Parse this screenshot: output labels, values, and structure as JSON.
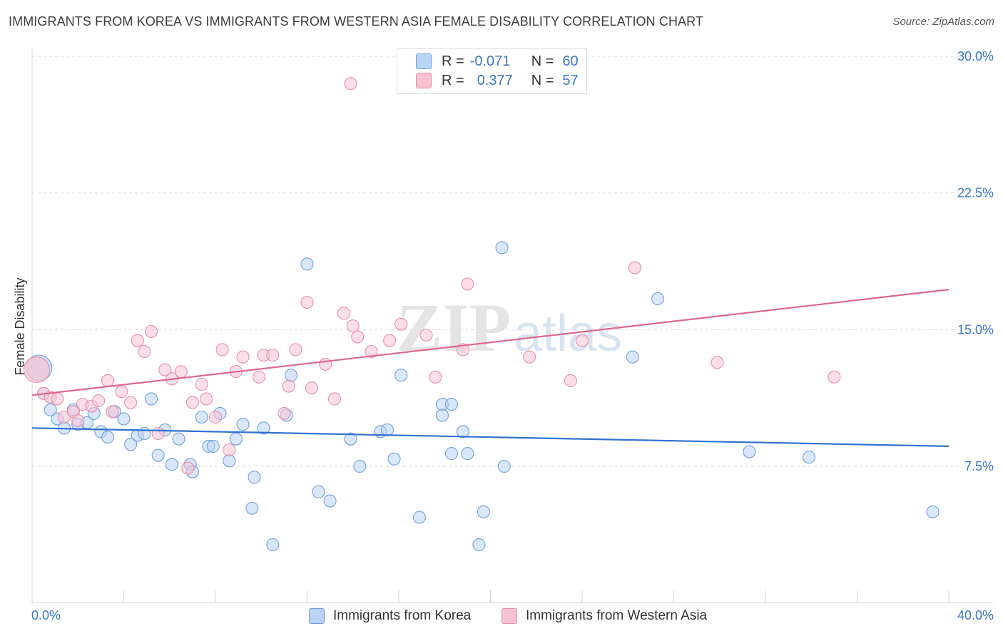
{
  "header": {
    "title": "IMMIGRANTS FROM KOREA VS IMMIGRANTS FROM WESTERN ASIA FEMALE DISABILITY CORRELATION CHART",
    "source": "Source: ZipAtlas.com"
  },
  "watermark": {
    "part1": "ZIP",
    "part2": "atlas"
  },
  "legend": {
    "r_label": "R =",
    "n_label": "N =",
    "korea": {
      "r": "-0.071",
      "n": "60"
    },
    "wasia": {
      "r": "0.377",
      "n": "57"
    }
  },
  "colors": {
    "korea_fill": "#b9d3f5",
    "korea_stroke": "#6e9fe0",
    "korea_line": "#2f72cf",
    "wasia_fill": "#f7c3d3",
    "wasia_stroke": "#e98eaa",
    "wasia_line": "#e0678f",
    "tick_label": "#3b78c9"
  },
  "chart_data": {
    "type": "scatter",
    "title": "IMMIGRANTS FROM KOREA VS IMMIGRANTS FROM WESTERN ASIA FEMALE DISABILITY CORRELATION CHART",
    "xlabel": "",
    "ylabel": "Female Disability",
    "xlim": [
      0,
      40
    ],
    "ylim": [
      0,
      31
    ],
    "x_tick_labels": [
      "0.0%",
      "40.0%"
    ],
    "y_ticks": [
      7.5,
      15.0,
      22.5,
      30.0
    ],
    "y_tick_labels": [
      "7.5%",
      "15.0%",
      "22.5%",
      "30.0%"
    ],
    "grid": true,
    "series": [
      {
        "name": "Immigrants from Korea",
        "color": "#6e9fe0",
        "trend": {
          "x": [
            0,
            40
          ],
          "y": [
            9.6,
            8.6
          ]
        },
        "points": [
          {
            "x": 0.3,
            "y": 12.9,
            "big": true
          },
          {
            "x": 0.5,
            "y": 11.5
          },
          {
            "x": 0.8,
            "y": 10.6
          },
          {
            "x": 1.1,
            "y": 10.1
          },
          {
            "x": 1.4,
            "y": 9.6
          },
          {
            "x": 1.8,
            "y": 10.6
          },
          {
            "x": 2.0,
            "y": 9.8
          },
          {
            "x": 2.4,
            "y": 9.9
          },
          {
            "x": 2.7,
            "y": 10.4
          },
          {
            "x": 3.0,
            "y": 9.4
          },
          {
            "x": 3.3,
            "y": 9.1
          },
          {
            "x": 3.6,
            "y": 10.5
          },
          {
            "x": 4.0,
            "y": 10.1
          },
          {
            "x": 4.3,
            "y": 8.7
          },
          {
            "x": 4.6,
            "y": 9.2
          },
          {
            "x": 4.9,
            "y": 9.3
          },
          {
            "x": 5.2,
            "y": 11.2
          },
          {
            "x": 5.5,
            "y": 8.1
          },
          {
            "x": 5.8,
            "y": 9.5
          },
          {
            "x": 6.1,
            "y": 7.6
          },
          {
            "x": 6.4,
            "y": 9.0
          },
          {
            "x": 6.9,
            "y": 7.6
          },
          {
            "x": 7.0,
            "y": 7.2
          },
          {
            "x": 7.4,
            "y": 10.2
          },
          {
            "x": 7.7,
            "y": 8.6
          },
          {
            "x": 7.9,
            "y": 8.6
          },
          {
            "x": 8.2,
            "y": 10.4
          },
          {
            "x": 8.6,
            "y": 7.8
          },
          {
            "x": 8.9,
            "y": 9.0
          },
          {
            "x": 9.2,
            "y": 9.8
          },
          {
            "x": 9.6,
            "y": 5.2
          },
          {
            "x": 9.7,
            "y": 6.9
          },
          {
            "x": 10.1,
            "y": 9.6
          },
          {
            "x": 10.5,
            "y": 3.2
          },
          {
            "x": 11.1,
            "y": 10.3
          },
          {
            "x": 11.3,
            "y": 12.5
          },
          {
            "x": 12.0,
            "y": 18.6
          },
          {
            "x": 12.5,
            "y": 6.1
          },
          {
            "x": 13.0,
            "y": 5.6
          },
          {
            "x": 13.9,
            "y": 9.0
          },
          {
            "x": 14.3,
            "y": 7.5
          },
          {
            "x": 15.2,
            "y": 9.4
          },
          {
            "x": 15.5,
            "y": 9.5
          },
          {
            "x": 15.8,
            "y": 7.9
          },
          {
            "x": 16.1,
            "y": 12.5
          },
          {
            "x": 16.9,
            "y": 4.7
          },
          {
            "x": 17.9,
            "y": 10.9
          },
          {
            "x": 17.9,
            "y": 10.3
          },
          {
            "x": 18.3,
            "y": 8.2
          },
          {
            "x": 18.3,
            "y": 10.9
          },
          {
            "x": 18.8,
            "y": 9.4
          },
          {
            "x": 19.0,
            "y": 8.2
          },
          {
            "x": 19.5,
            "y": 3.2
          },
          {
            "x": 19.7,
            "y": 5.0
          },
          {
            "x": 20.5,
            "y": 19.5
          },
          {
            "x": 20.6,
            "y": 7.5
          },
          {
            "x": 26.2,
            "y": 13.5
          },
          {
            "x": 27.3,
            "y": 16.7
          },
          {
            "x": 31.3,
            "y": 8.3
          },
          {
            "x": 33.9,
            "y": 8.0
          },
          {
            "x": 39.3,
            "y": 5.0
          }
        ]
      },
      {
        "name": "Immigrants from Western Asia",
        "color": "#e98eaa",
        "trend": {
          "x": [
            0,
            40
          ],
          "y": [
            11.4,
            17.2
          ]
        },
        "points": [
          {
            "x": 0.2,
            "y": 12.8,
            "big": true
          },
          {
            "x": 0.5,
            "y": 11.5
          },
          {
            "x": 0.8,
            "y": 11.3
          },
          {
            "x": 1.1,
            "y": 11.2
          },
          {
            "x": 1.4,
            "y": 10.2
          },
          {
            "x": 1.8,
            "y": 10.5
          },
          {
            "x": 2.0,
            "y": 10.0
          },
          {
            "x": 2.2,
            "y": 10.9
          },
          {
            "x": 2.6,
            "y": 10.8
          },
          {
            "x": 2.9,
            "y": 11.1
          },
          {
            "x": 3.3,
            "y": 12.2
          },
          {
            "x": 3.5,
            "y": 10.5
          },
          {
            "x": 3.9,
            "y": 11.6
          },
          {
            "x": 4.3,
            "y": 11.0
          },
          {
            "x": 4.6,
            "y": 14.4
          },
          {
            "x": 4.9,
            "y": 13.8
          },
          {
            "x": 5.2,
            "y": 14.9
          },
          {
            "x": 5.5,
            "y": 9.3
          },
          {
            "x": 5.8,
            "y": 12.8
          },
          {
            "x": 6.1,
            "y": 12.3
          },
          {
            "x": 6.5,
            "y": 12.7
          },
          {
            "x": 6.8,
            "y": 7.4
          },
          {
            "x": 7.0,
            "y": 11.0
          },
          {
            "x": 7.4,
            "y": 12.0
          },
          {
            "x": 7.6,
            "y": 11.2
          },
          {
            "x": 8.0,
            "y": 10.2
          },
          {
            "x": 8.3,
            "y": 13.9
          },
          {
            "x": 8.6,
            "y": 8.4
          },
          {
            "x": 8.9,
            "y": 12.7
          },
          {
            "x": 9.2,
            "y": 13.5
          },
          {
            "x": 9.9,
            "y": 12.4
          },
          {
            "x": 10.1,
            "y": 13.6
          },
          {
            "x": 10.5,
            "y": 13.6
          },
          {
            "x": 11.0,
            "y": 10.4
          },
          {
            "x": 11.2,
            "y": 11.9
          },
          {
            "x": 11.5,
            "y": 13.9
          },
          {
            "x": 12.0,
            "y": 16.5
          },
          {
            "x": 12.2,
            "y": 11.8
          },
          {
            "x": 12.8,
            "y": 13.1
          },
          {
            "x": 13.2,
            "y": 11.2
          },
          {
            "x": 13.9,
            "y": 28.5
          },
          {
            "x": 13.6,
            "y": 15.9
          },
          {
            "x": 14.0,
            "y": 15.2
          },
          {
            "x": 14.2,
            "y": 14.6
          },
          {
            "x": 14.8,
            "y": 13.8
          },
          {
            "x": 15.6,
            "y": 14.4
          },
          {
            "x": 16.1,
            "y": 15.3
          },
          {
            "x": 17.2,
            "y": 14.7
          },
          {
            "x": 17.6,
            "y": 12.4
          },
          {
            "x": 18.8,
            "y": 13.9
          },
          {
            "x": 19.0,
            "y": 17.5
          },
          {
            "x": 21.7,
            "y": 13.5
          },
          {
            "x": 23.5,
            "y": 12.2
          },
          {
            "x": 24.0,
            "y": 14.4
          },
          {
            "x": 26.3,
            "y": 18.4
          },
          {
            "x": 29.9,
            "y": 13.2
          },
          {
            "x": 35.0,
            "y": 12.4
          }
        ]
      }
    ]
  },
  "bottom_legend": {
    "korea": "Immigrants from Korea",
    "wasia": "Immigrants from Western Asia"
  }
}
